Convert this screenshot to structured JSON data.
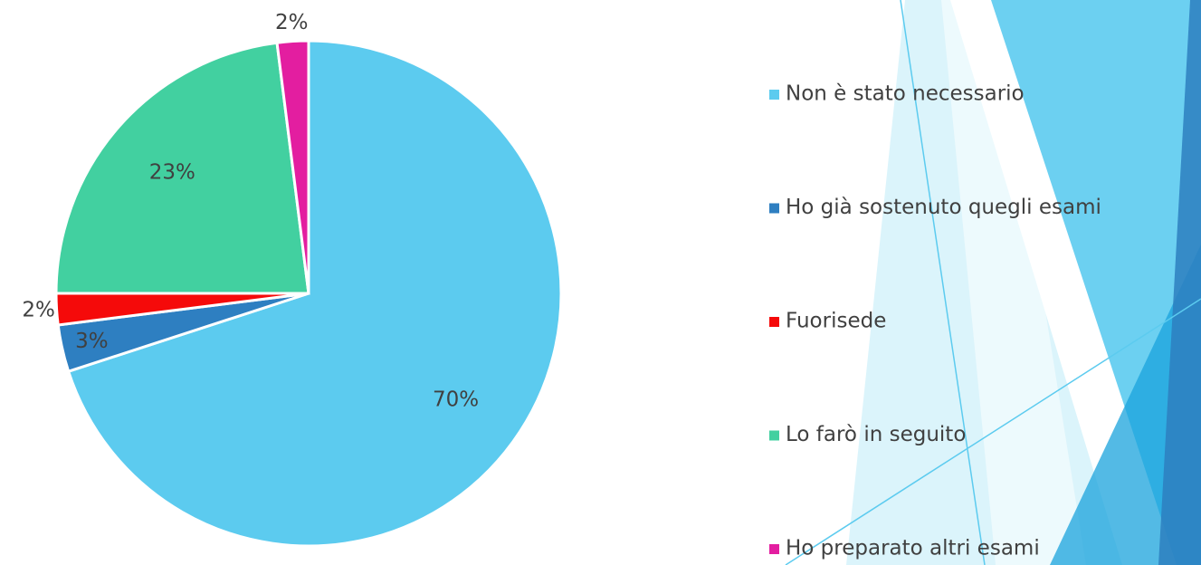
{
  "chart_data": {
    "type": "pie",
    "categories": [
      "Non è stato necessario",
      "Ho già sostenuto quegli esami",
      "Fuorisede",
      "Lo farò in seguito",
      "Ho preparato altri esami"
    ],
    "values": [
      70,
      3,
      2,
      23,
      2
    ],
    "value_labels": [
      "70%",
      "3%",
      "2%",
      "23%",
      "2%"
    ],
    "colors": [
      "#5ccbef",
      "#2e7fc1",
      "#f50a0a",
      "#42d0a0",
      "#e31ea0"
    ],
    "legend": "right"
  }
}
